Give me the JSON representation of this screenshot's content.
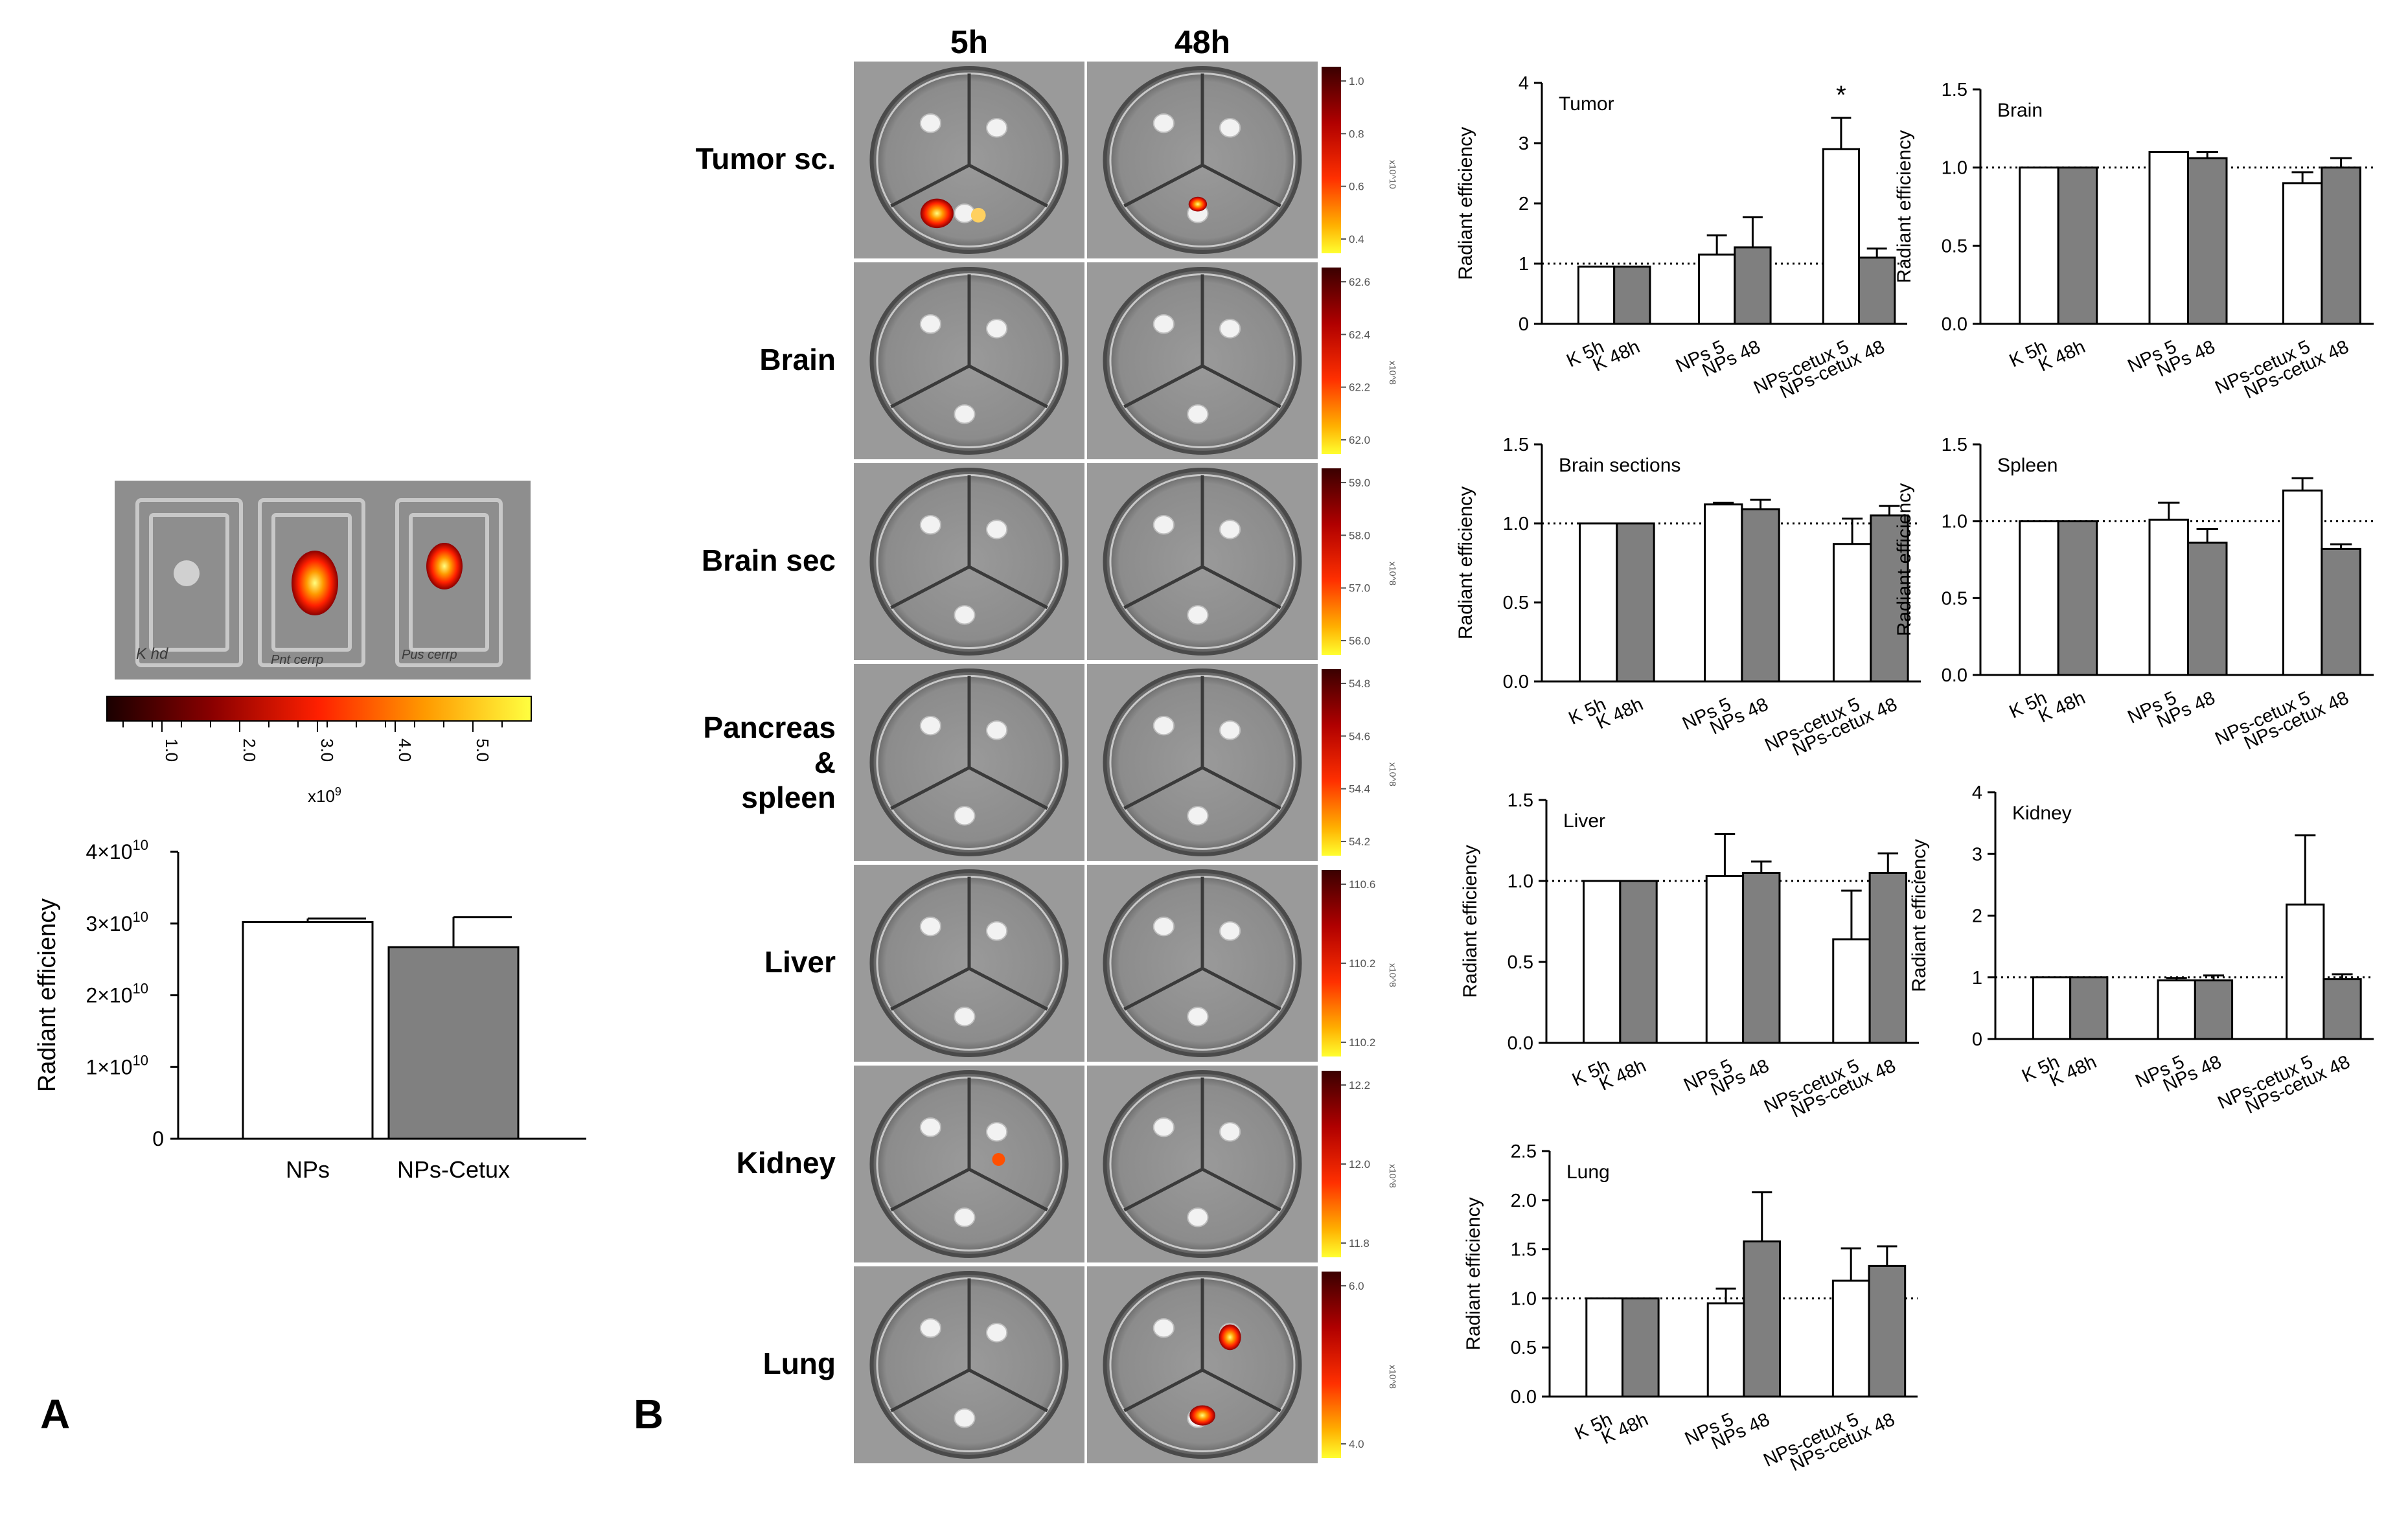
{
  "panel_labels": {
    "a": "A",
    "b": "B"
  },
  "panel_a": {
    "scale_ticks": [
      "1.0",
      "2.0",
      "3.0",
      "4.0",
      "5.0"
    ],
    "scale_unit": "x10",
    "scale_exp": "9",
    "well_labels": [
      "K hd",
      "Pnt cerrp",
      "Pus cerrp"
    ]
  },
  "panel_b": {
    "col_headers": [
      "5h",
      "48h"
    ],
    "row_labels": [
      {
        "lines": [
          "Tumor sc."
        ]
      },
      {
        "lines": [
          "Brain"
        ]
      },
      {
        "lines": [
          "Brain sec"
        ]
      },
      {
        "lines": [
          "Pancreas",
          "&",
          "spleen"
        ]
      },
      {
        "lines": [
          "Liver"
        ]
      },
      {
        "lines": [
          "Kidney"
        ]
      },
      {
        "lines": [
          "Lung"
        ]
      }
    ],
    "scales": [
      {
        "ticks": [
          "1.0",
          "0.8",
          "0.6",
          "0.4"
        ],
        "unit": "x10^10"
      },
      {
        "ticks": [
          "62.6",
          "62.4",
          "62.2",
          "62.0"
        ],
        "unit": "x10^8"
      },
      {
        "ticks": [
          "59.0",
          "58.0",
          "57.0",
          "56.0"
        ],
        "unit": "x10^8"
      },
      {
        "ticks": [
          "54.8",
          "54.6",
          "54.4",
          "54.2"
        ],
        "unit": "x10^8"
      },
      {
        "ticks": [
          "110.6",
          "110.2",
          "110.2"
        ],
        "unit": "x10^8"
      },
      {
        "ticks": [
          "12.2",
          "12.0",
          "11.8"
        ],
        "unit": "x10^8"
      },
      {
        "ticks": [
          "6.0",
          "4.0"
        ],
        "unit": "x10^8"
      }
    ]
  },
  "chart_data": [
    {
      "id": "A",
      "type": "bar",
      "title": "",
      "ylabel": "Radiant efficiency",
      "categories": [
        "NPs",
        "NPs-Cetux"
      ],
      "values": [
        30200000000.0,
        26700000000.0
      ],
      "errors": [
        500000000.0,
        4200000000.0
      ],
      "fills": [
        "#ffffff",
        "#808080"
      ],
      "ylim": [
        0,
        40000000000.0
      ],
      "ytick_labels": [
        "0",
        "1×10",
        "2×10",
        "3×10",
        "4×10"
      ],
      "ytick_exp": "10"
    },
    {
      "id": "tumor",
      "type": "bar",
      "title": "Tumor",
      "ylabel": "Radiant efficiency",
      "ylim": [
        0,
        4
      ],
      "yticks": [
        "0",
        "1",
        "2",
        "3",
        "4"
      ],
      "reference_line": 1,
      "categories": [
        "K 5h",
        "K 48h",
        "NPs 5",
        "NPs 48",
        "NPs-cetux 5",
        "NPs-cetux 48"
      ],
      "values": [
        0.95,
        0.95,
        1.15,
        1.27,
        2.9,
        1.1
      ],
      "errors": [
        0,
        0,
        0.32,
        0.5,
        0.52,
        0.15
      ],
      "annotations": [
        {
          "index": 4,
          "text": "*"
        }
      ]
    },
    {
      "id": "brain",
      "type": "bar",
      "title": "Brain",
      "ylabel": "Radiant efficiency",
      "ylim": [
        0,
        1.5
      ],
      "yticks": [
        "0.0",
        "0.5",
        "1.0",
        "1.5"
      ],
      "reference_line": 1,
      "categories": [
        "K 5h",
        "K 48h",
        "NPs 5",
        "NPs 48",
        "NPs-cetux 5",
        "NPs-cetux 48"
      ],
      "values": [
        1.0,
        1.0,
        1.1,
        1.06,
        0.9,
        1.0
      ],
      "errors": [
        0,
        0,
        0,
        0.04,
        0.07,
        0.06
      ]
    },
    {
      "id": "brain-sections",
      "type": "bar",
      "title": "Brain sections",
      "ylabel": "Radiant efficiency",
      "ylim": [
        0,
        1.5
      ],
      "yticks": [
        "0.0",
        "0.5",
        "1.0",
        "1.5"
      ],
      "reference_line": 1,
      "categories": [
        "K 5h",
        "K 48h",
        "NPs 5",
        "NPs 48",
        "NPs-cetux 5",
        "NPs-cetux 48"
      ],
      "values": [
        1.0,
        1.0,
        1.12,
        1.09,
        0.87,
        1.05
      ],
      "errors": [
        0,
        0,
        0.01,
        0.06,
        0.16,
        0.06
      ]
    },
    {
      "id": "spleen",
      "type": "bar",
      "title": "Spleen",
      "ylabel": "Radiant efficiency",
      "ylim": [
        0,
        1.5
      ],
      "yticks": [
        "0.0",
        "0.5",
        "1.0",
        "1.5"
      ],
      "reference_line": 1,
      "categories": [
        "K 5h",
        "K 48h",
        "NPs 5",
        "NPs 48",
        "NPs-cetux 5",
        "NPs-cetux 48"
      ],
      "values": [
        1.0,
        1.0,
        1.01,
        0.86,
        1.2,
        0.82
      ],
      "errors": [
        0,
        0,
        0.11,
        0.09,
        0.08,
        0.03
      ]
    },
    {
      "id": "liver",
      "type": "bar",
      "title": "Liver",
      "ylabel": "Radiant efficiency",
      "ylim": [
        0,
        1.5
      ],
      "yticks": [
        "0.0",
        "0.5",
        "1.0",
        "1.5"
      ],
      "reference_line": 1,
      "categories": [
        "K 5h",
        "K 48h",
        "NPs 5",
        "NPs 48",
        "NPs-cetux 5",
        "NPs-cetux 48"
      ],
      "values": [
        1.0,
        1.0,
        1.03,
        1.05,
        0.64,
        1.05
      ],
      "errors": [
        0,
        0,
        0.26,
        0.07,
        0.3,
        0.12
      ]
    },
    {
      "id": "kidney",
      "type": "bar",
      "title": "Kidney",
      "ylabel": "Radiant efficiency",
      "ylim": [
        0,
        4
      ],
      "yticks": [
        "0",
        "1",
        "2",
        "3",
        "4"
      ],
      "reference_line": 1,
      "categories": [
        "K 5h",
        "K 48h",
        "NPs 5",
        "NPs 48",
        "NPs-cetux 5",
        "NPs-cetux 48"
      ],
      "values": [
        1.0,
        1.0,
        0.95,
        0.95,
        2.18,
        0.97
      ],
      "errors": [
        0,
        0,
        0.04,
        0.08,
        1.12,
        0.08
      ]
    },
    {
      "id": "lung",
      "type": "bar",
      "title": "Lung",
      "ylabel": "Radiant efficiency",
      "ylim": [
        0,
        2.5
      ],
      "yticks": [
        "0.0",
        "0.5",
        "1.0",
        "1.5",
        "2.0",
        "2.5"
      ],
      "reference_line": 1,
      "categories": [
        "K 5h",
        "K 48h",
        "NPs 5",
        "NPs 48",
        "NPs-cetux 5",
        "NPs-cetux 48"
      ],
      "values": [
        1.0,
        1.0,
        0.95,
        1.58,
        1.18,
        1.33
      ],
      "errors": [
        0,
        0,
        0.15,
        0.5,
        0.33,
        0.2
      ]
    }
  ]
}
